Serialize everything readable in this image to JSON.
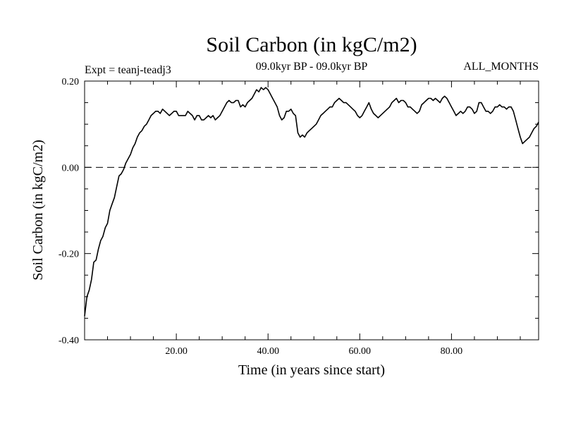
{
  "chart_data": {
    "type": "line",
    "title": "Soil Carbon (in kgC/m2)",
    "subtitle": "09.0kyr BP - 09.0kyr BP",
    "expt_label": "Expt = teanj-teadj3",
    "months_label": "ALL_MONTHS",
    "xlabel": "Time (in years since start)",
    "ylabel": "Soil Carbon (in kgC/m2)",
    "xlim": [
      0,
      99
    ],
    "ylim": [
      -0.4,
      0.2
    ],
    "x_ticks": [
      20,
      40,
      60,
      80
    ],
    "x_tick_labels": [
      "20.00",
      "40.00",
      "60.00",
      "80.00"
    ],
    "y_ticks": [
      -0.4,
      -0.2,
      0.0,
      0.2
    ],
    "y_tick_labels": [
      "-0.40",
      "-0.20",
      "0.00",
      "0.20"
    ],
    "zero_line": "dashed",
    "line_color": "#000000",
    "series": [
      {
        "x": [
          0,
          0.5,
          1,
          1.5,
          2,
          2.5,
          3,
          3.5,
          4,
          4.5,
          5,
          5.5,
          6,
          6.5,
          7,
          7.5,
          8,
          8.5,
          9,
          9.5,
          10,
          10.5,
          11,
          11.5,
          12,
          12.5,
          13,
          13.5,
          14,
          14.5,
          15,
          15.5,
          16,
          16.5,
          17,
          17.5,
          18,
          18.5,
          19,
          19.5,
          20,
          20.5,
          21,
          21.5,
          22,
          22.5,
          23,
          23.5,
          24,
          24.5,
          25,
          25.5,
          26,
          26.5,
          27,
          27.5,
          28,
          28.5,
          29,
          29.5,
          30,
          30.5,
          31,
          31.5,
          32,
          32.5,
          33,
          33.5,
          34,
          34.5,
          35,
          35.5,
          36,
          36.5,
          37,
          37.5,
          38,
          38.5,
          39,
          39.5,
          40,
          40.5,
          41,
          41.5,
          42,
          42.5,
          43,
          43.5,
          44,
          44.5,
          45,
          45.5,
          46,
          46.5,
          47,
          47.5,
          48,
          48.5,
          49,
          49.5,
          50,
          50.5,
          51,
          51.5,
          52,
          52.5,
          53,
          53.5,
          54,
          54.5,
          55,
          55.5,
          56,
          56.5,
          57,
          57.5,
          58,
          58.5,
          59,
          59.5,
          60,
          60.5,
          61,
          61.5,
          62,
          62.5,
          63,
          63.5,
          64,
          64.5,
          65,
          65.5,
          66,
          66.5,
          67,
          67.5,
          68,
          68.5,
          69,
          69.5,
          70,
          70.5,
          71,
          71.5,
          72,
          72.5,
          73,
          73.5,
          74,
          74.5,
          75,
          75.5,
          76,
          76.5,
          77,
          77.5,
          78,
          78.5,
          79,
          79.5,
          80,
          80.5,
          81,
          81.5,
          82,
          82.5,
          83,
          83.5,
          84,
          84.5,
          85,
          85.5,
          86,
          86.5,
          87,
          87.5,
          88,
          88.5,
          89,
          89.5,
          90,
          90.5,
          91,
          91.5,
          92,
          92.5,
          93,
          93.5,
          94,
          94.5,
          95,
          95.5,
          96,
          96.5,
          97,
          97.5,
          98,
          98.5,
          99
        ],
        "y": [
          -0.345,
          -0.3,
          -0.285,
          -0.26,
          -0.22,
          -0.215,
          -0.19,
          -0.17,
          -0.16,
          -0.14,
          -0.13,
          -0.1,
          -0.085,
          -0.07,
          -0.045,
          -0.02,
          -0.015,
          -0.005,
          0.01,
          0.02,
          0.03,
          0.045,
          0.055,
          0.07,
          0.08,
          0.085,
          0.095,
          0.1,
          0.11,
          0.12,
          0.125,
          0.13,
          0.13,
          0.125,
          0.135,
          0.13,
          0.125,
          0.12,
          0.125,
          0.13,
          0.13,
          0.12,
          0.12,
          0.12,
          0.12,
          0.13,
          0.125,
          0.12,
          0.11,
          0.12,
          0.12,
          0.11,
          0.11,
          0.115,
          0.12,
          0.115,
          0.12,
          0.11,
          0.115,
          0.12,
          0.13,
          0.14,
          0.15,
          0.155,
          0.15,
          0.15,
          0.155,
          0.155,
          0.14,
          0.145,
          0.14,
          0.15,
          0.155,
          0.16,
          0.17,
          0.18,
          0.175,
          0.185,
          0.18,
          0.185,
          0.18,
          0.17,
          0.16,
          0.15,
          0.14,
          0.12,
          0.11,
          0.115,
          0.13,
          0.13,
          0.135,
          0.125,
          0.12,
          0.08,
          0.07,
          0.075,
          0.07,
          0.08,
          0.085,
          0.09,
          0.095,
          0.1,
          0.11,
          0.12,
          0.125,
          0.13,
          0.135,
          0.14,
          0.14,
          0.15,
          0.155,
          0.16,
          0.155,
          0.15,
          0.15,
          0.145,
          0.14,
          0.135,
          0.13,
          0.12,
          0.115,
          0.12,
          0.13,
          0.14,
          0.15,
          0.135,
          0.125,
          0.12,
          0.115,
          0.12,
          0.125,
          0.13,
          0.135,
          0.14,
          0.15,
          0.155,
          0.16,
          0.15,
          0.155,
          0.155,
          0.15,
          0.14,
          0.14,
          0.135,
          0.13,
          0.125,
          0.13,
          0.145,
          0.15,
          0.155,
          0.16,
          0.16,
          0.155,
          0.16,
          0.155,
          0.15,
          0.16,
          0.165,
          0.16,
          0.15,
          0.14,
          0.13,
          0.12,
          0.125,
          0.13,
          0.125,
          0.13,
          0.14,
          0.14,
          0.135,
          0.125,
          0.13,
          0.15,
          0.15,
          0.14,
          0.13,
          0.13,
          0.125,
          0.13,
          0.14,
          0.14,
          0.145,
          0.14,
          0.14,
          0.135,
          0.14,
          0.14,
          0.13,
          0.11,
          0.09,
          0.07,
          0.055,
          0.06,
          0.065,
          0.07,
          0.08,
          0.09,
          0.095,
          0.105
        ]
      }
    ]
  }
}
